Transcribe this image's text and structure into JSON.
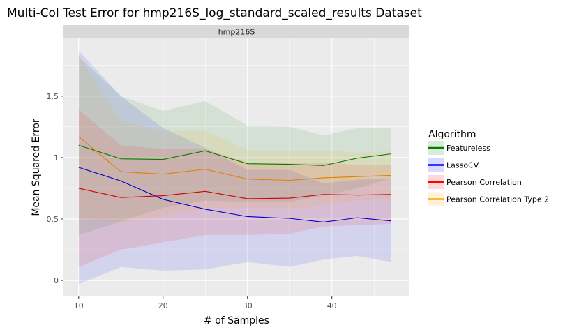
{
  "chart_data": {
    "type": "line",
    "title": "Multi-Col Test Error for hmp216S_log_standard_scaled_results Dataset",
    "facet_label": "hmp216S",
    "xlabel": "# of Samples",
    "ylabel": "Mean Squared Error",
    "xlim": [
      8.2,
      49.2
    ],
    "ylim": [
      -0.13,
      1.97
    ],
    "x_ticks": [
      10,
      20,
      30,
      40
    ],
    "y_ticks": [
      0,
      0.5,
      1,
      1.5
    ],
    "y_tick_labels": [
      "0",
      "0.5",
      "1",
      "1.5"
    ],
    "grid": true,
    "legend_title": "Algorithm",
    "legend_position": "right",
    "x": [
      10,
      15,
      20,
      25,
      30,
      35,
      39,
      43,
      47
    ],
    "series": [
      {
        "name": "Featureless",
        "color": "#008000",
        "values": [
          1.1,
          0.99,
          0.985,
          1.055,
          0.95,
          0.945,
          0.935,
          0.995,
          1.03
        ],
        "lower": [
          0.37,
          0.48,
          0.59,
          0.65,
          0.64,
          0.64,
          0.69,
          0.75,
          0.83
        ],
        "upper": [
          1.82,
          1.5,
          1.38,
          1.46,
          1.26,
          1.25,
          1.18,
          1.24,
          1.24
        ]
      },
      {
        "name": "LassoCV",
        "color": "#0000cc",
        "values": [
          0.92,
          0.81,
          0.66,
          0.58,
          0.52,
          0.505,
          0.475,
          0.51,
          0.485
        ],
        "lower": [
          -0.03,
          0.11,
          0.08,
          0.09,
          0.15,
          0.11,
          0.17,
          0.2,
          0.15
        ],
        "upper": [
          1.87,
          1.5,
          1.24,
          1.08,
          0.9,
          0.9,
          0.79,
          0.82,
          0.83
        ]
      },
      {
        "name": "Pearson Correlation",
        "color": "#cc0000",
        "values": [
          0.75,
          0.675,
          0.69,
          0.725,
          0.665,
          0.67,
          0.7,
          0.695,
          0.7
        ],
        "lower": [
          0.11,
          0.25,
          0.31,
          0.37,
          0.37,
          0.38,
          0.44,
          0.45,
          0.46
        ],
        "upper": [
          1.39,
          1.1,
          1.07,
          1.07,
          0.96,
          0.96,
          0.96,
          0.94,
          0.94
        ]
      },
      {
        "name": "Pearson Correlation Type 2",
        "color": "#e08000",
        "values": [
          1.17,
          0.885,
          0.865,
          0.905,
          0.825,
          0.815,
          0.835,
          0.845,
          0.855
        ],
        "lower": [
          0.51,
          0.47,
          0.52,
          0.59,
          0.59,
          0.58,
          0.61,
          0.65,
          0.66
        ],
        "upper": [
          1.83,
          1.3,
          1.21,
          1.22,
          1.06,
          1.05,
          1.06,
          1.04,
          1.05
        ]
      }
    ]
  },
  "legend_colors": {
    "Featureless": "#008000",
    "LassoCV": "#0000ff",
    "Pearson Correlation": "#ff0000",
    "Pearson Correlation Type 2": "#ffa500"
  }
}
